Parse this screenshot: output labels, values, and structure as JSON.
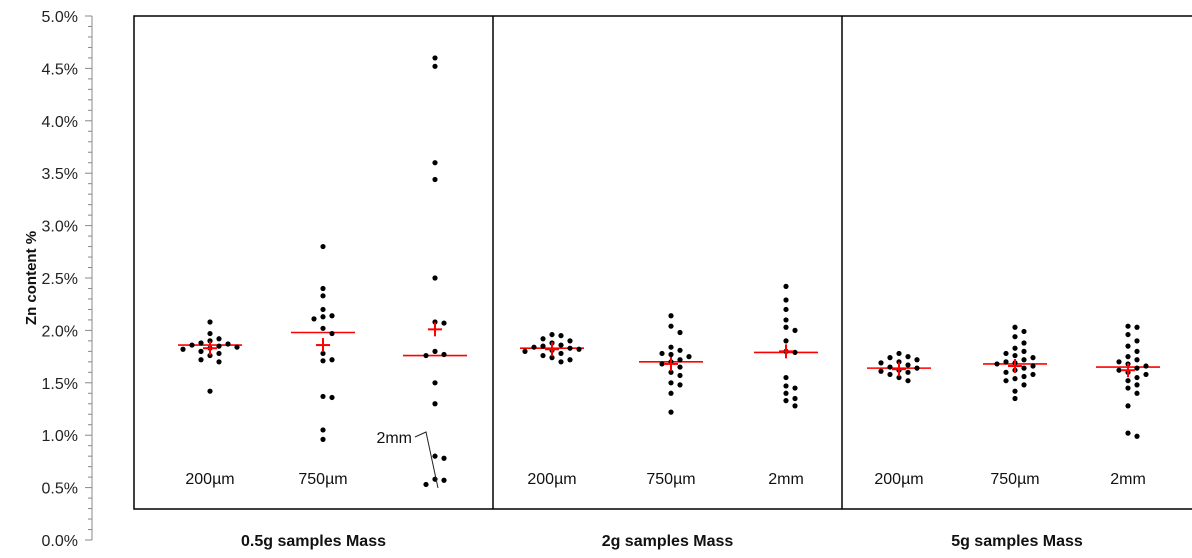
{
  "chart_data": {
    "type": "scatter",
    "ylabel": "Zn content %",
    "ylim": [
      0,
      5
    ],
    "y_ticks": [
      "0.0%",
      "0.5%",
      "1.0%",
      "1.5%",
      "2.0%",
      "2.5%",
      "3.0%",
      "3.5%",
      "4.0%",
      "4.5%",
      "5.0%"
    ],
    "grid": false,
    "annotation": "2mm",
    "panels": [
      {
        "label": "0.5g samples Mass",
        "groups": [
          {
            "label": "200µm",
            "mean": 1.83,
            "median": 1.86,
            "points": [
              2.08,
              1.97,
              1.92,
              1.9,
              1.88,
              1.87,
              1.86,
              1.85,
              1.84,
              1.83,
              1.82,
              1.8,
              1.78,
              1.76,
              1.72,
              1.7,
              1.42
            ]
          },
          {
            "label": "750µm",
            "mean": 1.86,
            "median": 1.98,
            "points": [
              2.8,
              2.4,
              2.33,
              2.2,
              2.14,
              2.13,
              2.11,
              2.02,
              1.97,
              1.78,
              1.72,
              1.71,
              1.37,
              1.36,
              1.05,
              0.96
            ]
          },
          {
            "label": "2mm",
            "mean": 2.01,
            "median": 1.76,
            "points": [
              4.6,
              4.52,
              3.6,
              3.44,
              2.5,
              2.08,
              2.07,
              1.8,
              1.77,
              1.76,
              1.5,
              1.3,
              0.8,
              0.78,
              0.58,
              0.57,
              0.53
            ]
          }
        ]
      },
      {
        "label": "2g samples Mass",
        "groups": [
          {
            "label": "200µm",
            "mean": 1.82,
            "median": 1.83,
            "points": [
              1.96,
              1.95,
              1.92,
              1.9,
              1.88,
              1.86,
              1.85,
              1.84,
              1.83,
              1.82,
              1.81,
              1.8,
              1.78,
              1.76,
              1.74,
              1.72,
              1.7
            ]
          },
          {
            "label": "750µm",
            "mean": 1.68,
            "median": 1.7,
            "points": [
              2.14,
              2.04,
              1.98,
              1.84,
              1.81,
              1.78,
              1.77,
              1.75,
              1.72,
              1.7,
              1.68,
              1.65,
              1.6,
              1.57,
              1.5,
              1.48,
              1.4,
              1.22
            ]
          },
          {
            "label": "2mm",
            "mean": 1.8,
            "median": 1.79,
            "points": [
              2.42,
              2.29,
              2.2,
              2.1,
              2.03,
              2.0,
              1.9,
              1.8,
              1.79,
              1.55,
              1.47,
              1.45,
              1.4,
              1.35,
              1.33,
              1.28
            ]
          }
        ]
      },
      {
        "label": "5g samples Mass",
        "groups": [
          {
            "label": "200µm",
            "mean": 1.63,
            "median": 1.64,
            "points": [
              1.78,
              1.75,
              1.74,
              1.72,
              1.7,
              1.69,
              1.67,
              1.65,
              1.64,
              1.62,
              1.61,
              1.6,
              1.58,
              1.55,
              1.52
            ]
          },
          {
            "label": "750µm",
            "mean": 1.66,
            "median": 1.68,
            "points": [
              2.03,
              1.99,
              1.94,
              1.88,
              1.83,
              1.8,
              1.78,
              1.76,
              1.74,
              1.72,
              1.7,
              1.69,
              1.68,
              1.66,
              1.64,
              1.62,
              1.6,
              1.58,
              1.56,
              1.54,
              1.52,
              1.48,
              1.42,
              1.35
            ]
          },
          {
            "label": "2mm",
            "mean": 1.62,
            "median": 1.65,
            "points": [
              2.04,
              2.03,
              1.96,
              1.9,
              1.85,
              1.8,
              1.75,
              1.72,
              1.7,
              1.68,
              1.66,
              1.64,
              1.62,
              1.6,
              1.58,
              1.55,
              1.52,
              1.48,
              1.45,
              1.4,
              1.28,
              1.02,
              0.99
            ]
          }
        ]
      }
    ],
    "colors": {
      "points": "#000000",
      "mean_marker": "#ff0000",
      "median_line": "#ff0000",
      "frame": "#000000"
    }
  }
}
